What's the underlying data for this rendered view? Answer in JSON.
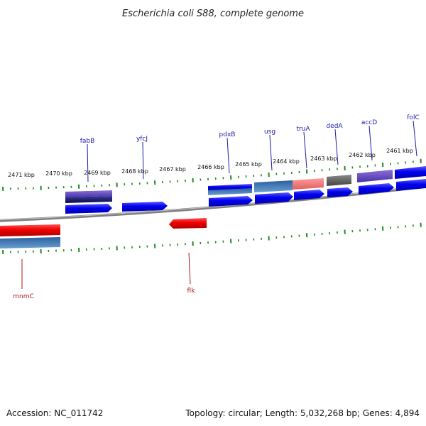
{
  "title": "Escherichia coli S88, complete genome",
  "footer": {
    "accession": "Accession: NC_011742",
    "summary": "Topology: circular; Length: 5,032,268 bp; Genes: 4,894"
  },
  "scale_labels": [
    "2471 kbp",
    "2470 kbp",
    "2469 kbp",
    "2468 kbp",
    "2467 kbp",
    "2466 kbp",
    "2465 kbp",
    "2464 kbp",
    "2463 kbp",
    "2462 kbp",
    "2461 kbp"
  ],
  "forward_genes": [
    "fabB",
    "yfcJ",
    "pdxB",
    "usg",
    "truA",
    "dedA",
    "accD",
    "folC"
  ],
  "reverse_genes": [
    "mnmC",
    "flk"
  ],
  "colors": {
    "forward_gene": "#0000ee",
    "reverse_gene": "#ee0000",
    "tick": "#1f8a1f",
    "backbone": "#808080",
    "label_forward": "#1a1aa8",
    "label_reverse": "#b01515"
  }
}
